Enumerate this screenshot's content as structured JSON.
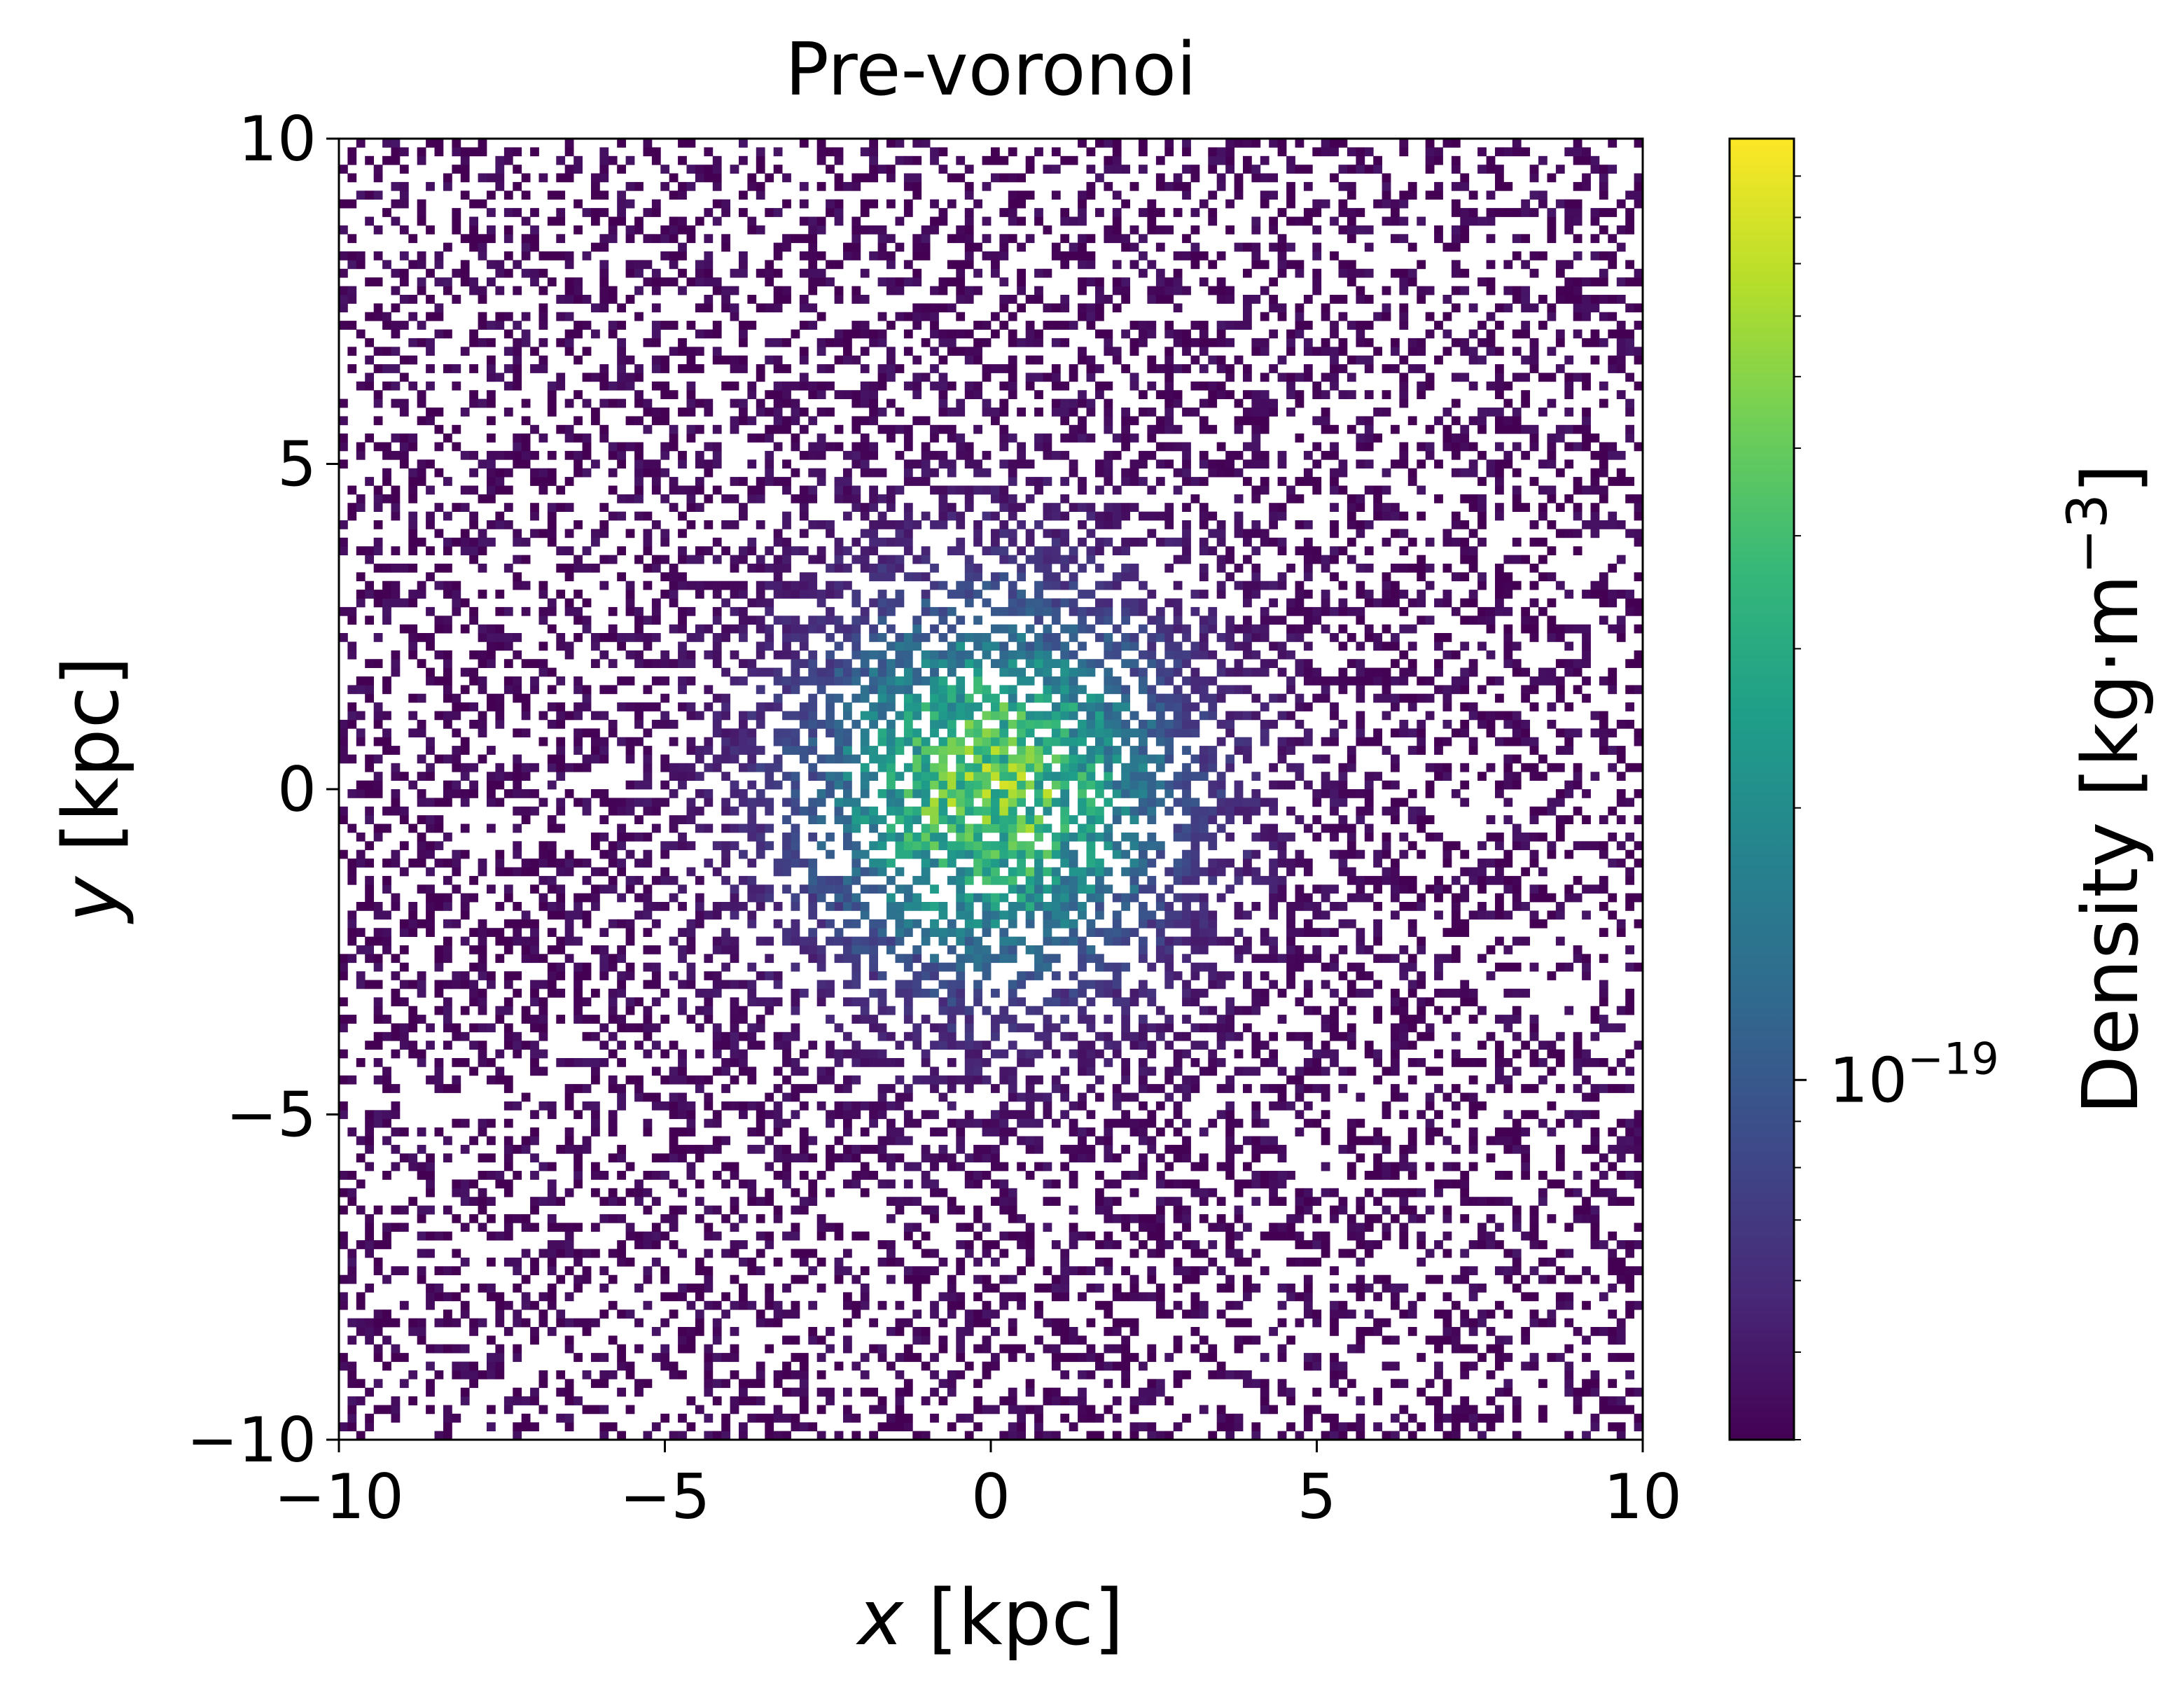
{
  "chart_data": {
    "type": "heatmap",
    "title": "Pre-voronoi",
    "xlabel": {
      "var": "x",
      "unit": "[kpc]"
    },
    "ylabel": {
      "var": "y",
      "unit": "[kpc]"
    },
    "xlim": [
      -10,
      10
    ],
    "ylim": [
      -10,
      10
    ],
    "x_ticks": [
      {
        "value": -10,
        "label": "−10"
      },
      {
        "value": -5,
        "label": "−5"
      },
      {
        "value": 0,
        "label": "0"
      },
      {
        "value": 5,
        "label": "5"
      },
      {
        "value": 10,
        "label": "10"
      }
    ],
    "y_ticks": [
      {
        "value": -10,
        "label": "−10"
      },
      {
        "value": -5,
        "label": "−5"
      },
      {
        "value": 0,
        "label": "0"
      },
      {
        "value": 5,
        "label": "5"
      },
      {
        "value": 10,
        "label": "10"
      }
    ],
    "grid": false,
    "distribution": {
      "shape": "centrally concentrated, roughly circular 2D particle density",
      "center": [
        0,
        0
      ],
      "visible_extent_kpc": 10
    },
    "colorbar": {
      "label_text": "Density",
      "label_unit_base": "[kg·m",
      "label_unit_exp": "−3",
      "label_unit_close": "]",
      "scale": "log",
      "colormap": "viridis",
      "major_tick": {
        "base": "10",
        "exponent": "−19",
        "value": 1e-19
      },
      "vmin": 4e-20,
      "vmax": 1.1e-18,
      "minor_ticks": [
        4e-20,
        5e-20,
        6e-20,
        7e-20,
        8e-20,
        9e-20,
        2e-19,
        3e-19,
        4e-19,
        5e-19,
        6e-19,
        7e-19,
        8e-19,
        9e-19,
        1e-18
      ],
      "colors": [
        "#440154",
        "#482878",
        "#3e4989",
        "#31688e",
        "#26828e",
        "#1f9e89",
        "#35b779",
        "#6ece58",
        "#b5de2b",
        "#fde725"
      ]
    }
  }
}
